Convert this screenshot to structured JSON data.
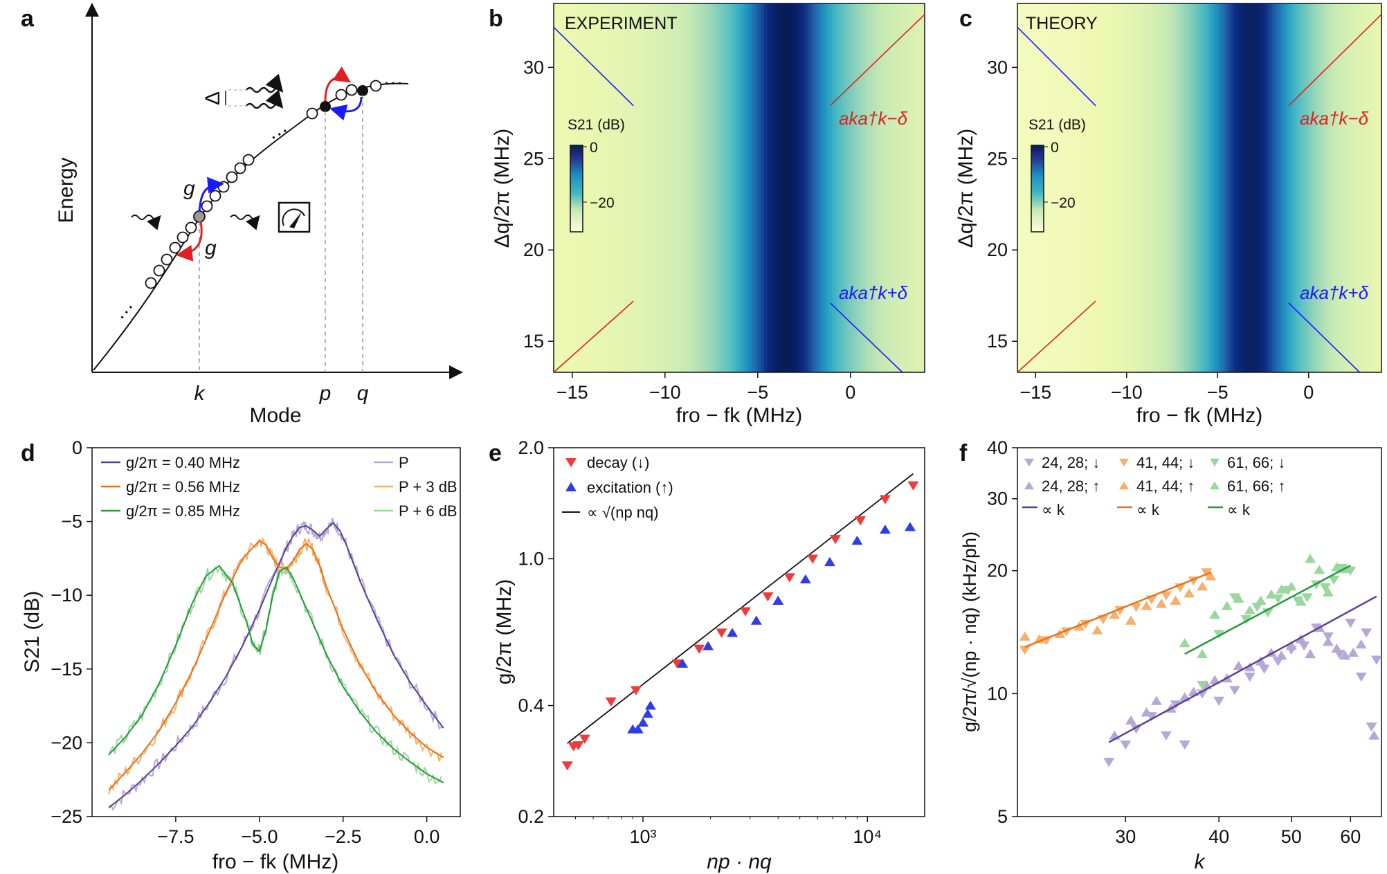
{
  "panels": {
    "a": {
      "label": "a",
      "ylabel": "Energy",
      "xlabel": "Mode",
      "mode_labels": [
        "k",
        "p",
        "q"
      ],
      "coupling_labels": [
        "g",
        "g"
      ],
      "detuning_label": "Δ",
      "ellipsis": "…"
    },
    "b": {
      "label": "b",
      "title": "EXPERIMENT",
      "xlabel": "fro − fk (MHz)",
      "ylabel": "Δq/2π (MHz)",
      "colorbar_label": "S21 (dB)",
      "colorbar_ticks": [
        "0",
        "−20"
      ],
      "annotations": [
        "aka†k−δ",
        "aka†k+δ"
      ]
    },
    "c": {
      "label": "c",
      "title": "THEORY",
      "xlabel": "fro − fk (MHz)",
      "ylabel": "Δq/2π (MHz)",
      "colorbar_label": "S21 (dB)",
      "colorbar_ticks": [
        "0",
        "−20"
      ],
      "annotations": [
        "aka†k−δ",
        "aka†k+δ"
      ]
    },
    "d": {
      "label": "d"
    },
    "e": {
      "label": "e"
    },
    "f": {
      "label": "f"
    }
  },
  "chart_data": [
    {
      "id": "b",
      "type": "heatmap",
      "title": "EXPERIMENT",
      "xlabel": "fro − fk (MHz)",
      "ylabel": "Δq/2π (MHz)",
      "xlim": [
        -16,
        4
      ],
      "ylim": [
        13.3,
        33.5
      ],
      "xticks": [
        "−15",
        "−10",
        "−5",
        "0"
      ],
      "xtick_values": [
        -15,
        -10,
        -5,
        0
      ],
      "yticks": [
        "15",
        "20",
        "25",
        "30"
      ],
      "ytick_values": [
        15,
        20,
        25,
        30
      ],
      "resonance_center_MHz": -3.5,
      "colorbar_range_dB": [
        -28,
        0
      ],
      "colormap": [
        "#ffffd9",
        "#edf8b1",
        "#c7e9b4",
        "#7fcdbb",
        "#41b6c4",
        "#1d91c0",
        "#225ea8",
        "#0c2c84"
      ],
      "lines": [
        {
          "color": "#1a1aff",
          "x": [
            -16,
            -11.7
          ],
          "y": [
            32.2,
            27.9
          ]
        },
        {
          "color": "#1a1aff",
          "x": [
            -1.1,
            2.8
          ],
          "y": [
            17.1,
            13.3
          ]
        },
        {
          "color": "#e02020",
          "x": [
            -16,
            -11.7
          ],
          "y": [
            13.3,
            17.2
          ]
        },
        {
          "color": "#e02020",
          "x": [
            -1.1,
            4
          ],
          "y": [
            27.9,
            32.9
          ]
        }
      ]
    },
    {
      "id": "c",
      "type": "heatmap",
      "title": "THEORY",
      "xlabel": "fro − fk (MHz)",
      "ylabel": "Δq/2π (MHz)",
      "xlim": [
        -16,
        4
      ],
      "ylim": [
        13.3,
        33.5
      ],
      "xticks": [
        "−15",
        "−10",
        "−5",
        "0"
      ],
      "xtick_values": [
        -15,
        -10,
        -5,
        0
      ],
      "yticks": [
        "15",
        "20",
        "25",
        "30"
      ],
      "ytick_values": [
        15,
        20,
        25,
        30
      ],
      "resonance_center_MHz": -3.2,
      "colorbar_range_dB": [
        -28,
        0
      ],
      "lines": [
        {
          "color": "#1a1aff",
          "x": [
            -16,
            -11.7
          ],
          "y": [
            32.2,
            27.9
          ]
        },
        {
          "color": "#1a1aff",
          "x": [
            -1.1,
            2.8
          ],
          "y": [
            17.1,
            13.3
          ]
        },
        {
          "color": "#e02020",
          "x": [
            -16,
            -11.7
          ],
          "y": [
            13.3,
            17.2
          ]
        },
        {
          "color": "#e02020",
          "x": [
            -1.1,
            4
          ],
          "y": [
            27.9,
            32.9
          ]
        }
      ]
    },
    {
      "id": "d",
      "type": "line",
      "xlabel": "fro − fk (MHz)",
      "ylabel": "S21 (dB)",
      "xlim": [
        -10,
        1
      ],
      "ylim": [
        -25,
        0
      ],
      "xticks": [
        "−7.5",
        "−5.0",
        "−2.5",
        "0.0"
      ],
      "xtick_values": [
        -7.5,
        -5.0,
        -2.5,
        0.0
      ],
      "yticks": [
        "0",
        "−5",
        "−10",
        "−15",
        "−20",
        "−25"
      ],
      "ytick_values": [
        0,
        -5,
        -10,
        -15,
        -20,
        -25
      ],
      "legend_fit": [
        "g/2π = 0.40 MHz",
        "g/2π = 0.56 MHz",
        "g/2π = 0.85 MHz"
      ],
      "legend_power": [
        "P",
        "P + 3 dB",
        "P + 6 dB"
      ],
      "series": [
        {
          "name": "g/2π = 0.40 MHz",
          "power": "P",
          "color": "#5b3e96",
          "light": "#b6a7d6",
          "x": [
            -9.5,
            -9.0,
            -8.5,
            -8.0,
            -7.5,
            -7.0,
            -6.5,
            -6.0,
            -5.5,
            -5.0,
            -4.5,
            -4.2,
            -4.0,
            -3.8,
            -3.6,
            -3.4,
            -3.2,
            -3.0,
            -2.8,
            -2.6,
            -2.4,
            -2.0,
            -1.5,
            -1.0,
            -0.5,
            0.0,
            0.5
          ],
          "y": [
            -24.4,
            -23.5,
            -22.5,
            -21.4,
            -20.2,
            -18.9,
            -17.3,
            -15.5,
            -13.4,
            -11.0,
            -8.3,
            -6.8,
            -6.0,
            -5.4,
            -5.3,
            -5.6,
            -6.0,
            -5.5,
            -5.1,
            -5.6,
            -6.6,
            -9.0,
            -11.6,
            -14.0,
            -15.9,
            -17.5,
            -19.0
          ]
        },
        {
          "name": "g/2π = 0.56 MHz",
          "power": "P + 3 dB",
          "color": "#e8711a",
          "light": "#f5b06e",
          "x": [
            -9.5,
            -9.0,
            -8.5,
            -8.0,
            -7.5,
            -7.0,
            -6.5,
            -6.0,
            -5.5,
            -5.0,
            -4.8,
            -4.6,
            -4.4,
            -4.2,
            -4.0,
            -3.8,
            -3.6,
            -3.4,
            -3.2,
            -3.0,
            -2.5,
            -2.0,
            -1.5,
            -1.0,
            -0.5,
            0.0,
            0.5
          ],
          "y": [
            -23.2,
            -22.0,
            -20.7,
            -19.2,
            -17.3,
            -15.1,
            -12.5,
            -9.8,
            -7.5,
            -6.3,
            -6.6,
            -7.5,
            -8.1,
            -8.2,
            -7.7,
            -6.9,
            -6.5,
            -6.9,
            -8.0,
            -9.4,
            -12.3,
            -14.7,
            -16.6,
            -18.1,
            -19.3,
            -20.3,
            -21.0
          ]
        },
        {
          "name": "g/2π = 0.85 MHz",
          "power": "P + 6 dB",
          "color": "#249a3a",
          "light": "#9ad79e",
          "x": [
            -9.5,
            -9.0,
            -8.5,
            -8.0,
            -7.5,
            -7.0,
            -6.6,
            -6.2,
            -5.8,
            -5.4,
            -5.2,
            -5.0,
            -4.8,
            -4.6,
            -4.4,
            -4.2,
            -4.0,
            -3.5,
            -3.0,
            -2.5,
            -2.0,
            -1.5,
            -1.0,
            -0.5,
            0.0,
            0.5
          ],
          "y": [
            -20.8,
            -19.6,
            -18.1,
            -16.0,
            -13.4,
            -10.5,
            -8.7,
            -8.0,
            -9.2,
            -11.7,
            -13.3,
            -13.8,
            -12.3,
            -10.0,
            -8.4,
            -8.1,
            -8.8,
            -11.4,
            -14.0,
            -16.2,
            -17.9,
            -19.3,
            -20.4,
            -21.3,
            -22.1,
            -22.7
          ]
        }
      ]
    },
    {
      "id": "e",
      "type": "scatter",
      "xscale": "log",
      "yscale": "log",
      "xlabel": "np · nq",
      "ylabel": "g/2π (MHz)",
      "xlim": [
        400,
        18000
      ],
      "ylim": [
        0.2,
        2.0
      ],
      "xticks": [
        "10³",
        "10⁴"
      ],
      "xtick_values": [
        1000,
        10000
      ],
      "yticks": [
        "0.2",
        "0.4",
        "1.0",
        "2.0"
      ],
      "ytick_values": [
        0.2,
        0.4,
        1.0,
        2.0
      ],
      "legend": [
        "decay (↓)",
        "excitation (↑)",
        "∝ √(np nq)"
      ],
      "fit_line": {
        "x": [
          460,
          16000
        ],
        "y": [
          0.316,
          1.7
        ]
      },
      "series": [
        {
          "name": "decay (↓)",
          "marker": "down-triangle",
          "color": "#ef3b3b",
          "x": [
            460,
            490,
            515,
            550,
            720,
            930,
            1420,
            1780,
            2240,
            2860,
            3600,
            4500,
            5700,
            7200,
            9300,
            12000,
            16000
          ],
          "y": [
            0.275,
            0.31,
            0.312,
            0.325,
            0.41,
            0.44,
            0.52,
            0.57,
            0.63,
            0.72,
            0.79,
            0.89,
            1.0,
            1.13,
            1.27,
            1.45,
            1.58
          ]
        },
        {
          "name": "excitation (↑)",
          "marker": "up-triangle",
          "color": "#2f3de8",
          "x": [
            900,
            950,
            1000,
            1050,
            1080,
            1500,
            1950,
            2500,
            3200,
            4000,
            5300,
            6800,
            9000,
            12000,
            15500
          ],
          "y": [
            0.345,
            0.345,
            0.36,
            0.38,
            0.4,
            0.52,
            0.58,
            0.63,
            0.68,
            0.77,
            0.88,
            0.98,
            1.12,
            1.2,
            1.22
          ]
        }
      ]
    },
    {
      "id": "f",
      "type": "scatter",
      "xscale": "log",
      "yscale": "log",
      "xlabel": "k",
      "ylabel": "g/2π/√(np · nq) (kHz/ph)",
      "xlim": [
        21.5,
        66
      ],
      "ylim": [
        5,
        40
      ],
      "xticks": [
        "30",
        "40",
        "50",
        "60"
      ],
      "xtick_values": [
        30,
        40,
        50,
        60
      ],
      "yticks": [
        "5",
        "10",
        "20",
        "30",
        "40"
      ],
      "ytick_values": [
        5,
        10,
        20,
        30,
        40
      ],
      "legend": [
        "24, 28; ↓",
        "41, 44; ↓",
        "61, 66; ↓",
        "24, 28; ↑",
        "41, 44; ↑",
        "61, 66; ↑",
        "∝ k",
        "∝ k",
        "∝ k"
      ],
      "fits": [
        {
          "name": "∝ k",
          "color": "#5b3e96",
          "x": [
            28.5,
            65
          ],
          "y": [
            7.6,
            17.3
          ]
        },
        {
          "name": "∝ k",
          "color": "#e8711a",
          "x": [
            22,
            39
          ],
          "y": [
            13.0,
            19.8
          ]
        },
        {
          "name": "∝ k",
          "color": "#249a3a",
          "x": [
            36,
            60
          ],
          "y": [
            12.5,
            20.6
          ]
        }
      ],
      "series": [
        {
          "name": "24, 28; ↓",
          "marker": "down-triangle",
          "color": "#b6a7d6",
          "x": [
            28.5,
            30,
            31,
            32.5,
            34,
            35,
            36,
            38,
            40,
            42,
            44,
            46,
            48,
            50,
            52,
            54,
            56,
            58,
            60,
            62,
            63,
            64,
            65
          ],
          "y": [
            6.8,
            7.5,
            8.2,
            8.8,
            7.9,
            9.4,
            7.5,
            10.0,
            9.6,
            10.2,
            11.0,
            11.5,
            12.0,
            12.8,
            13.1,
            14.5,
            13.8,
            12.5,
            14.9,
            11.0,
            14.1,
            8.3,
            12.1
          ]
        },
        {
          "name": "24, 28; ↑",
          "marker": "up-triangle",
          "color": "#b6a7d6",
          "x": [
            29,
            30.5,
            32,
            33,
            34.5,
            36,
            37,
            38.5,
            39.5,
            41,
            42.5,
            44,
            45.5,
            47,
            48.5,
            50,
            51.5,
            53,
            54.5,
            56,
            57.5,
            59,
            60.5,
            62,
            64.5
          ],
          "y": [
            7.9,
            8.6,
            9.0,
            9.6,
            9.2,
            9.8,
            10.1,
            10.5,
            10.8,
            10.9,
            11.7,
            11.6,
            12.0,
            12.6,
            12.4,
            13.1,
            13.6,
            12.5,
            14.5,
            13.4,
            12.9,
            12.4,
            12.6,
            13.2,
            7.9
          ]
        },
        {
          "name": "41, 44; ↓",
          "marker": "down-triangle",
          "color": "#f5b06e",
          "x": [
            22,
            23.5,
            25,
            26.5,
            28,
            29.5,
            31,
            32.5,
            34,
            35.5,
            37,
            38.5
          ],
          "y": [
            12.8,
            13.5,
            14.2,
            14.8,
            15.2,
            16.0,
            16.3,
            17.0,
            17.4,
            18.2,
            18.9,
            19.8
          ]
        },
        {
          "name": "41, 44; ↑",
          "marker": "up-triangle",
          "color": "#f5b06e",
          "x": [
            22,
            23,
            24.5,
            26,
            27.5,
            29,
            30.5,
            32,
            33.5,
            35,
            36.5,
            38,
            39
          ],
          "y": [
            13.8,
            13.6,
            14.0,
            14.6,
            14.3,
            15.6,
            15.1,
            16.4,
            16.6,
            16.9,
            17.6,
            18.3,
            19.4
          ]
        },
        {
          "name": "61, 66; ↓",
          "marker": "down-triangle",
          "color": "#9ad79e",
          "x": [
            38,
            40,
            42,
            43.5,
            45,
            46.5,
            48,
            49.5,
            51,
            52.5,
            54,
            55.5,
            57,
            58.5,
            60
          ],
          "y": [
            10.5,
            14.0,
            17.2,
            15.2,
            16.3,
            15.8,
            17.1,
            17.9,
            16.9,
            17.2,
            18.5,
            18.2,
            19.0,
            20.3,
            20.0
          ]
        },
        {
          "name": "61, 66; ↑",
          "marker": "up-triangle",
          "color": "#9ad79e",
          "x": [
            36,
            38,
            39.5,
            41,
            42.5,
            44,
            45.5,
            47,
            48.5,
            50,
            51.5,
            53,
            54.5,
            56,
            57.5,
            59
          ],
          "y": [
            13.3,
            12.5,
            15.6,
            16.4,
            17.1,
            16.0,
            16.9,
            17.5,
            18.0,
            18.3,
            16.8,
            21.4,
            20.1,
            17.7,
            20.4,
            20.2
          ]
        }
      ]
    }
  ]
}
